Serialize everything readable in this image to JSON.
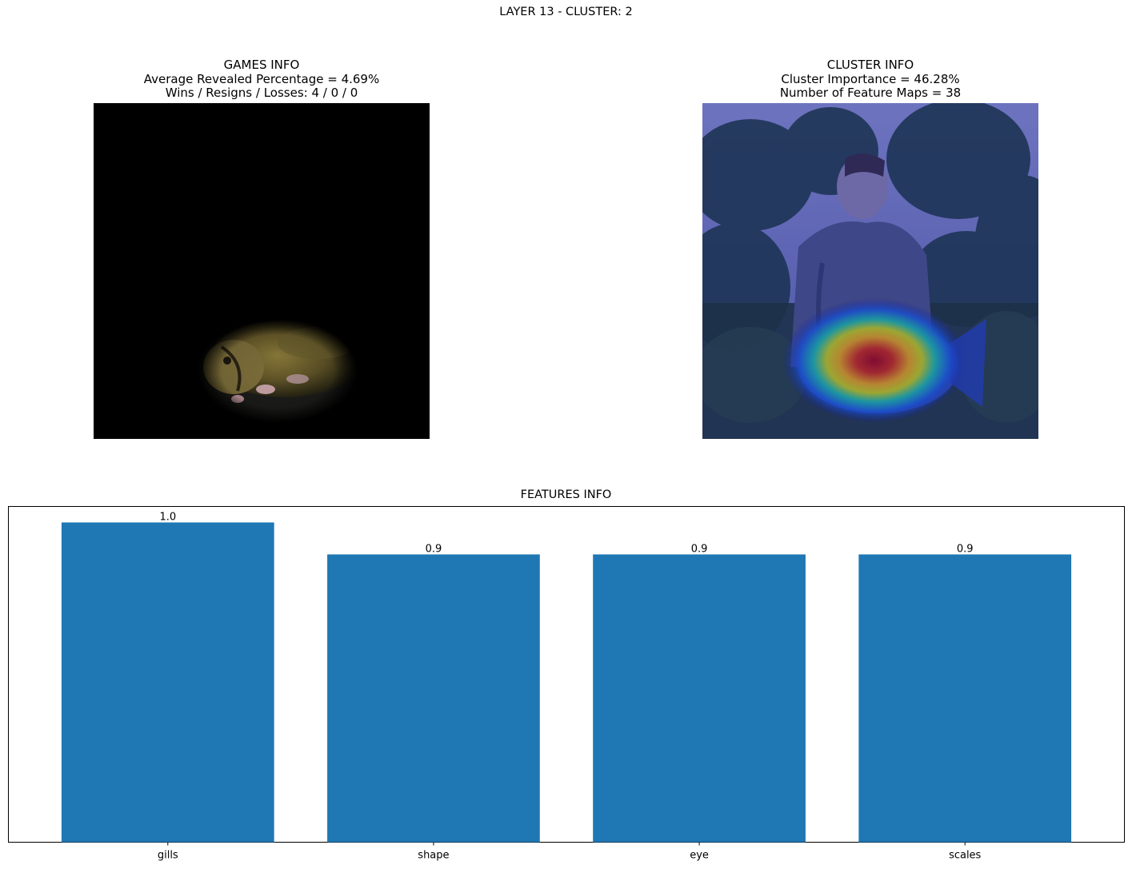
{
  "suptitle": "LAYER 13 - CLUSTER: 2",
  "games": {
    "title": "GAMES INFO",
    "line1": "Average Revealed Percentage = 4.69%",
    "line2": "Wins / Resigns / Losses: 4 / 0 / 0"
  },
  "cluster": {
    "title": "CLUSTER INFO",
    "line1": "Cluster Importance = 46.28%",
    "line2": "Number of Feature Maps = 38"
  },
  "chart_data": {
    "type": "bar",
    "title": "FEATURES INFO",
    "categories": [
      "gills",
      "shape",
      "eye",
      "scales"
    ],
    "values": [
      1.0,
      0.9,
      0.9,
      0.9
    ],
    "value_labels": [
      "1.0",
      "0.9",
      "0.9",
      "0.9"
    ],
    "bar_color": "#1f77b4",
    "ylim": [
      0,
      1.05
    ],
    "y_ticks_visible": false,
    "grid": false
  }
}
